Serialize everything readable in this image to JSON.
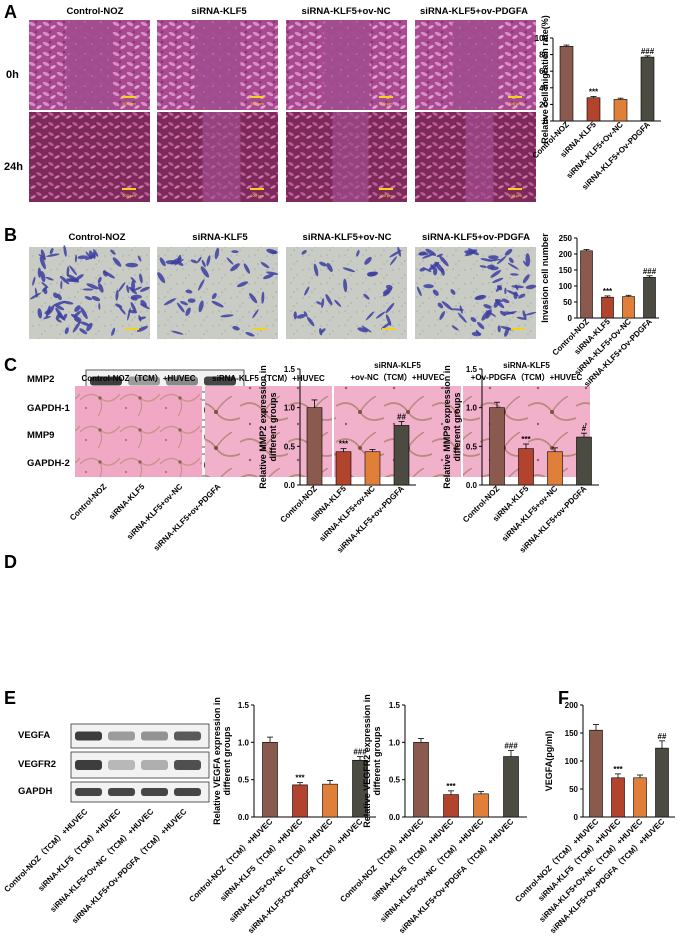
{
  "panels": {
    "A": "A",
    "B": "B",
    "C": "C",
    "D": "D",
    "E": "E",
    "F": "F"
  },
  "groups_short": [
    "Control-NOZ",
    "siRNA-KLF5",
    "siRNA-KLF5+ov-NC",
    "siRNA-KLF5+ov-PDGFA"
  ],
  "panel_a": {
    "rows": [
      "0h",
      "24h"
    ],
    "scale_label": "100 μm"
  },
  "panel_d_headers": [
    [
      "Control-NOZ（TCM）+HUVEC"
    ],
    [
      "siRNA-KLF5（TCM）+HUVEC"
    ],
    [
      "siRNA-KLF5",
      "+ov-NC（TCM）+HUVEC"
    ],
    [
      "siRNA-KLF5",
      "+Ov-PDGFA（TCM）+HUVEC"
    ]
  ],
  "blots_c": [
    "MMP2",
    "GAPDH-1",
    "MMP9",
    "GAPDH-2"
  ],
  "blots_e": [
    "VEGFA",
    "VEGFR2",
    "GAPDH"
  ],
  "colors": {
    "c1": "#8b5a4f",
    "c2": "#b2432c",
    "c3": "#e07f3a",
    "c4": "#4b4b41",
    "purple": "#9b3f86",
    "blot": "#333333"
  },
  "chart_data": [
    {
      "id": "A",
      "type": "bar",
      "ylabel": "Relative cell migration rate(%)",
      "ylim": [
        0,
        100
      ],
      "yticks": [
        0,
        20,
        40,
        60,
        80,
        100
      ],
      "categories": [
        "Control-NOZ",
        "siRNA-KLF5",
        "siRNA-KLF5+Ov-NC",
        "siRNA-KLF5+Ov-PDGFA"
      ],
      "values": [
        90,
        28,
        26,
        77
      ],
      "errors": [
        1.5,
        1.5,
        1.5,
        1.5
      ],
      "sig": [
        "",
        "***",
        "",
        "###"
      ]
    },
    {
      "id": "B",
      "type": "bar",
      "ylabel": "Invasion cell number",
      "ylim": [
        0,
        250
      ],
      "yticks": [
        0,
        50,
        100,
        150,
        200,
        250
      ],
      "categories": [
        "Control-NOZ",
        "siRNA-KLF5",
        "siRNA-KLF5+Ov-NC",
        "siRNA-KLF5+Ov-PDGFA"
      ],
      "values": [
        210,
        65,
        67,
        127
      ],
      "errors": [
        4,
        4,
        4,
        5
      ],
      "sig": [
        "",
        "***",
        "",
        "###"
      ]
    },
    {
      "id": "C1",
      "type": "bar",
      "ylabel": "Relative MMP2 expression in different groups",
      "ylim": [
        0,
        1.5
      ],
      "yticks": [
        0.0,
        0.5,
        1.0,
        1.5
      ],
      "categories": [
        "Control-NOZ",
        "siRNA-KLF5",
        "siRNA-KLF5+ov-NC",
        "siRNA-KLF5+ov-PDGFA"
      ],
      "values": [
        1.0,
        0.43,
        0.43,
        0.77
      ],
      "errors": [
        0.1,
        0.04,
        0.03,
        0.05
      ],
      "sig": [
        "",
        "***",
        "",
        "##"
      ]
    },
    {
      "id": "C2",
      "type": "bar",
      "ylabel": "Relative MMP9 expression in different groups",
      "ylim": [
        0,
        1.5
      ],
      "yticks": [
        0.0,
        0.5,
        1.0,
        1.5
      ],
      "categories": [
        "Control-NOZ",
        "siRNA-KLF5",
        "siRNA-KLF5+ov-NC",
        "siRNA-KLF5+ov-PDGFA"
      ],
      "values": [
        1.0,
        0.47,
        0.43,
        0.62
      ],
      "errors": [
        0.07,
        0.06,
        0.05,
        0.05
      ],
      "sig": [
        "",
        "***",
        "",
        "#"
      ]
    },
    {
      "id": "E1",
      "type": "bar",
      "ylabel": "Relative VEGFA expression in different groups",
      "ylim": [
        0,
        1.5
      ],
      "yticks": [
        0.0,
        0.5,
        1.0,
        1.5
      ],
      "categories": [
        "Control-NOZ（TCM）+HUVEC",
        "siRNA-KLF5（TCM）+HUVEC",
        "siRNA-KLF5+Ov-NC（TCM）+HUVEC",
        "siRNA-KLF5+Ov-PDGFA（TCM）+HUVEC"
      ],
      "values": [
        1.0,
        0.43,
        0.44,
        0.76
      ],
      "errors": [
        0.07,
        0.03,
        0.05,
        0.05
      ],
      "sig": [
        "",
        "***",
        "",
        "###"
      ]
    },
    {
      "id": "E2",
      "type": "bar",
      "ylabel": "Relative VEGFR2 expression in different groups",
      "ylim": [
        0,
        1.5
      ],
      "yticks": [
        0.0,
        0.5,
        1.0,
        1.5
      ],
      "categories": [
        "Control-NOZ（TCM）+HUVEC",
        "siRNA-KLF5（TCM）+HUVEC",
        "siRNA-KLF5+Ov-NC（TCM）+HUVEC",
        "siRNA-KLF5+Ov-PDGFA（TCM）+HUVEC"
      ],
      "values": [
        1.0,
        0.3,
        0.31,
        0.81
      ],
      "errors": [
        0.05,
        0.05,
        0.03,
        0.08
      ],
      "sig": [
        "",
        "***",
        "",
        "###"
      ]
    },
    {
      "id": "F",
      "type": "bar",
      "ylabel": "VEGFA(pg/ml)",
      "ylim": [
        0,
        200
      ],
      "yticks": [
        0,
        50,
        100,
        150,
        200
      ],
      "categories": [
        "Control-NOZ（TCM）+HUVEC",
        "siRNA-KLF5（TCM）+HUVEC",
        "siRNA-KLF5+Ov-NC（TCM）+HUVEC",
        "siRNA-KLF5+Ov-PDGFA（TCM）+HUVEC"
      ],
      "values": [
        155,
        70,
        70,
        123
      ],
      "errors": [
        10,
        7,
        5,
        13
      ],
      "sig": [
        "",
        "***",
        "",
        "##"
      ]
    }
  ]
}
